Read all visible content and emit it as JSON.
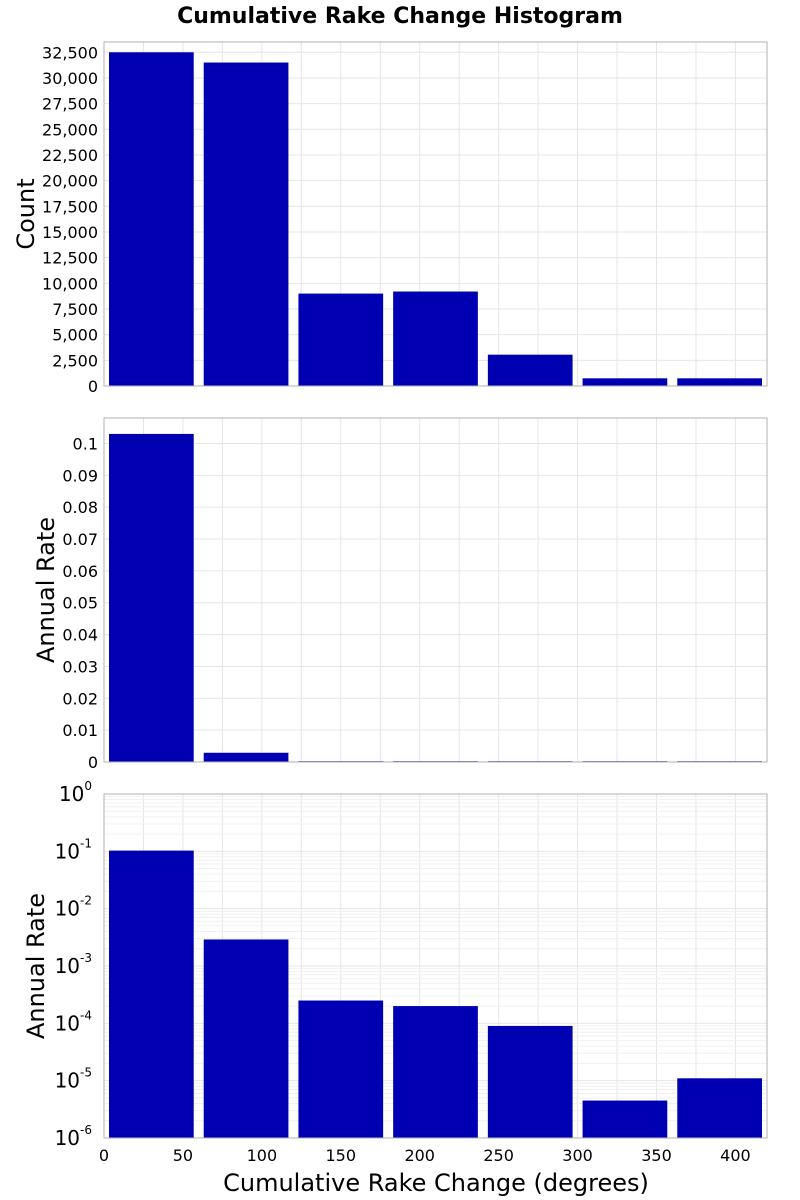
{
  "colors": {
    "bar": "#0000b3",
    "grid": "#e6e6e6",
    "frame": "#b0b0b0"
  },
  "chart_data": [
    {
      "type": "bar",
      "title": "Cumulative Rake Change Histogram",
      "xlabel": "",
      "ylabel": "Count",
      "bin_width": 60,
      "x": [
        30,
        90,
        150,
        210,
        270,
        330,
        390
      ],
      "values": [
        32500,
        31500,
        9000,
        9200,
        3050,
        750,
        750
      ],
      "xlim": [
        0,
        420
      ],
      "ylim": [
        0,
        33500
      ],
      "yticks": [
        0,
        2500,
        5000,
        7500,
        10000,
        12500,
        15000,
        17500,
        20000,
        22500,
        25000,
        27500,
        30000,
        32500
      ],
      "ytick_labels": [
        "0",
        "2,500",
        "5,000",
        "7,500",
        "10,000",
        "12,500",
        "15,000",
        "17,500",
        "20,000",
        "22,500",
        "25,000",
        "27,500",
        "30,000",
        "32,500"
      ],
      "grid": true
    },
    {
      "type": "bar",
      "title": "",
      "xlabel": "",
      "ylabel": "Annual Rate",
      "bin_width": 60,
      "x": [
        30,
        90,
        150,
        210,
        270,
        330,
        390
      ],
      "values": [
        0.103,
        0.0029,
        0.00025,
        0.0002,
        9e-05,
        4.5e-06,
        1.1e-05
      ],
      "xlim": [
        0,
        420
      ],
      "ylim": [
        0,
        0.108
      ],
      "yticks": [
        0,
        0.01,
        0.02,
        0.03,
        0.04,
        0.05,
        0.06,
        0.07,
        0.08,
        0.09,
        0.1
      ],
      "ytick_labels": [
        "0",
        "0.01",
        "0.02",
        "0.03",
        "0.04",
        "0.05",
        "0.06",
        "0.07",
        "0.08",
        "0.09",
        "0.1"
      ],
      "grid": true
    },
    {
      "type": "bar",
      "title": "",
      "xlabel": "Cumulative Rake Change (degrees)",
      "ylabel": "Annual Rate",
      "y_scale": "log",
      "bin_width": 60,
      "x": [
        30,
        90,
        150,
        210,
        270,
        330,
        390
      ],
      "values": [
        0.103,
        0.0029,
        0.00025,
        0.0002,
        9e-05,
        4.5e-06,
        1.1e-05
      ],
      "xlim": [
        0,
        420
      ],
      "ylim": [
        1e-06,
        1
      ],
      "yticks_exp": [
        0,
        -1,
        -2,
        -3,
        -4,
        -5,
        -6
      ],
      "ytick_base": "10",
      "xticks": [
        0,
        50,
        100,
        150,
        200,
        250,
        300,
        350,
        400
      ],
      "xtick_labels": [
        "0",
        "50",
        "100",
        "150",
        "200",
        "250",
        "300",
        "350",
        "400"
      ],
      "grid": true
    }
  ]
}
